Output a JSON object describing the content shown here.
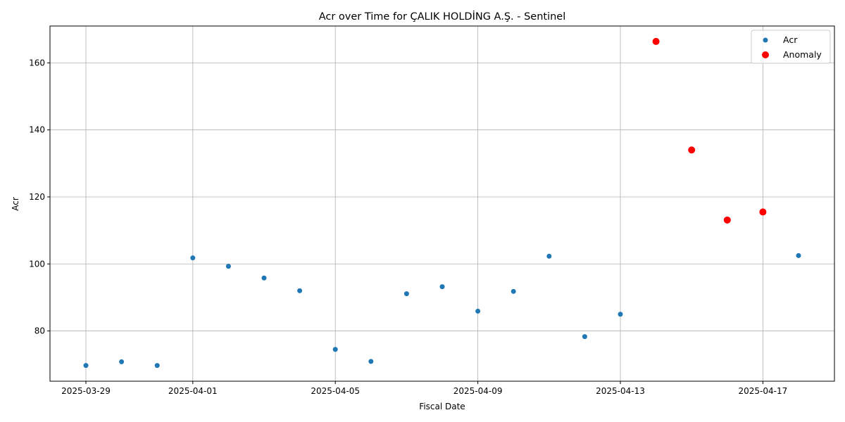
{
  "chart_data": {
    "type": "scatter",
    "title": "Acr over Time for ÇALIK HOLDİNG A.Ş. - Sentinel",
    "xlabel": "Fiscal Date",
    "ylabel": "Acr",
    "x_ticks": [
      "2025-03-29",
      "2025-04-01",
      "2025-04-05",
      "2025-04-09",
      "2025-04-13",
      "2025-04-17"
    ],
    "y_ticks": [
      80,
      100,
      120,
      140,
      160
    ],
    "xlim": [
      "2025-03-28",
      "2025-04-18"
    ],
    "ylim": [
      65,
      171
    ],
    "grid": true,
    "legend_position": "top-right",
    "series": [
      {
        "name": "Acr",
        "color": "#1f77b4",
        "points": [
          {
            "x": "2025-03-29",
            "y": 69.7
          },
          {
            "x": "2025-03-30",
            "y": 70.8
          },
          {
            "x": "2025-03-31",
            "y": 69.7
          },
          {
            "x": "2025-04-01",
            "y": 101.8
          },
          {
            "x": "2025-04-02",
            "y": 99.3
          },
          {
            "x": "2025-04-03",
            "y": 95.8
          },
          {
            "x": "2025-04-04",
            "y": 92.0
          },
          {
            "x": "2025-04-05",
            "y": 74.5
          },
          {
            "x": "2025-04-06",
            "y": 70.9
          },
          {
            "x": "2025-04-07",
            "y": 91.1
          },
          {
            "x": "2025-04-08",
            "y": 93.2
          },
          {
            "x": "2025-04-09",
            "y": 85.9
          },
          {
            "x": "2025-04-10",
            "y": 91.8
          },
          {
            "x": "2025-04-11",
            "y": 102.3
          },
          {
            "x": "2025-04-12",
            "y": 78.3
          },
          {
            "x": "2025-04-13",
            "y": 85.0
          },
          {
            "x": "2025-04-18",
            "y": 102.5
          }
        ]
      },
      {
        "name": "Anomaly",
        "color": "#ff0000",
        "points": [
          {
            "x": "2025-04-14",
            "y": 166.4
          },
          {
            "x": "2025-04-15",
            "y": 134.0
          },
          {
            "x": "2025-04-16",
            "y": 113.1
          },
          {
            "x": "2025-04-17",
            "y": 115.5
          }
        ]
      }
    ]
  }
}
